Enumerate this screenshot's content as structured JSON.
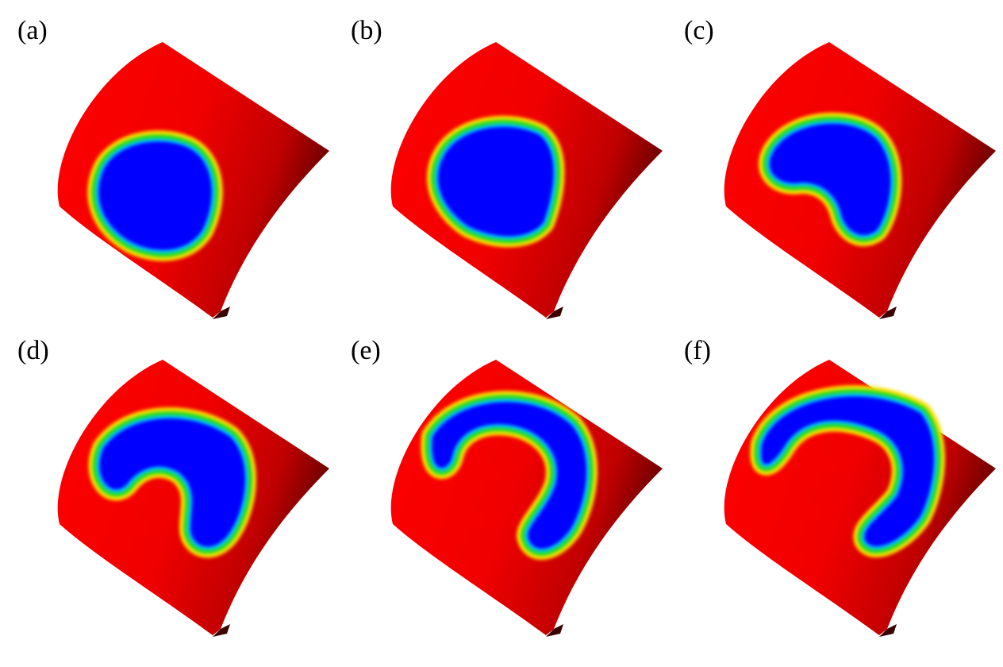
{
  "figure": {
    "panels": [
      {
        "label": "(a)",
        "stage": "circle"
      },
      {
        "label": "(b)",
        "stage": "rounded"
      },
      {
        "label": "(c)",
        "stage": "kidney"
      },
      {
        "label": "(d)",
        "stage": "crescent"
      },
      {
        "label": "(e)",
        "stage": "arc"
      },
      {
        "label": "(f)",
        "stage": "long-arc"
      }
    ]
  },
  "colors": {
    "surface_red": "#ff0000",
    "surface_dark": "#3a0000",
    "phase_blue": "#0000ff",
    "interface_cyan": "#00c8ff",
    "interface_green": "#22dd22",
    "interface_yellow": "#ffe000"
  }
}
